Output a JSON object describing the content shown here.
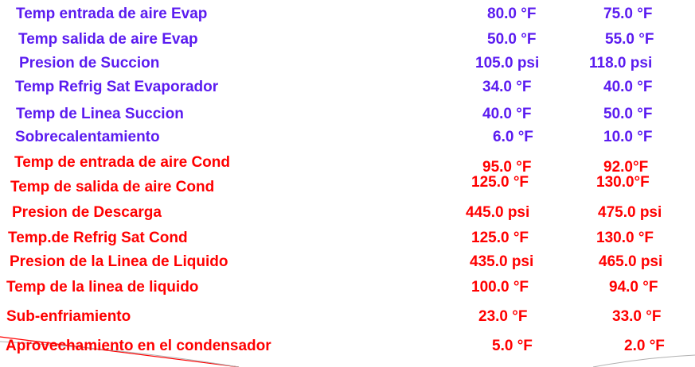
{
  "colors": {
    "evaporator_text": "#5b1cf0",
    "condenser_text": "#ff0000"
  },
  "rows": [
    {
      "label": "Temp entrada de aire Evap",
      "value_1": "80.0 °F",
      "value_2": "75.0 °F",
      "group": "evaporator"
    },
    {
      "label": "Temp  salida de aire Evap",
      "value_1": "50.0 °F",
      "value_2": "55.0 °F",
      "group": "evaporator"
    },
    {
      "label": "Presion de Succion",
      "value_1": "105.0 psi",
      "value_2": "118.0 psi",
      "group": "evaporator"
    },
    {
      "label": "Temp Refrig Sat Evaporador",
      "value_1": "34.0 °F",
      "value_2": "40.0 °F",
      "group": "evaporator"
    },
    {
      "label": "Temp de Linea Succion",
      "value_1": "40.0 °F",
      "value_2": "50.0 °F",
      "group": "evaporator"
    },
    {
      "label": "Sobrecalentamiento",
      "value_1": "6.0 °F",
      "value_2": "10.0 °F",
      "group": "evaporator"
    },
    {
      "label": "Temp de entrada de aire Cond",
      "value_1": "95.0 °F",
      "value_2": "92.0°F",
      "group": "condenser"
    },
    {
      "label": "Temp de salida de aire Cond",
      "value_1": "125.0 °F",
      "value_2": "130.0°F",
      "group": "condenser"
    },
    {
      "label": "Presion de Descarga",
      "value_1": "445.0 psi",
      "value_2": "475.0 psi",
      "group": "condenser"
    },
    {
      "label": "Temp.de Refrig Sat Cond",
      "value_1": "125.0 °F",
      "value_2": "130.0 °F",
      "group": "condenser"
    },
    {
      "label": "Presion de la Linea de Liquido",
      "value_1": "435.0 psi",
      "value_2": "465.0 psi",
      "group": "condenser"
    },
    {
      "label": "Temp de la linea de liquido",
      "value_1": "100.0 °F",
      "value_2": "94.0 °F",
      "group": "condenser"
    },
    {
      "label": "Sub-enfriamiento",
      "value_1": "23.0 °F",
      "value_2": "33.0 °F",
      "group": "condenser"
    },
    {
      "label": "Aprovechamiento en el condensador",
      "value_1": "5.0 °F",
      "value_2": "2.0 °F",
      "group": "condenser"
    }
  ]
}
